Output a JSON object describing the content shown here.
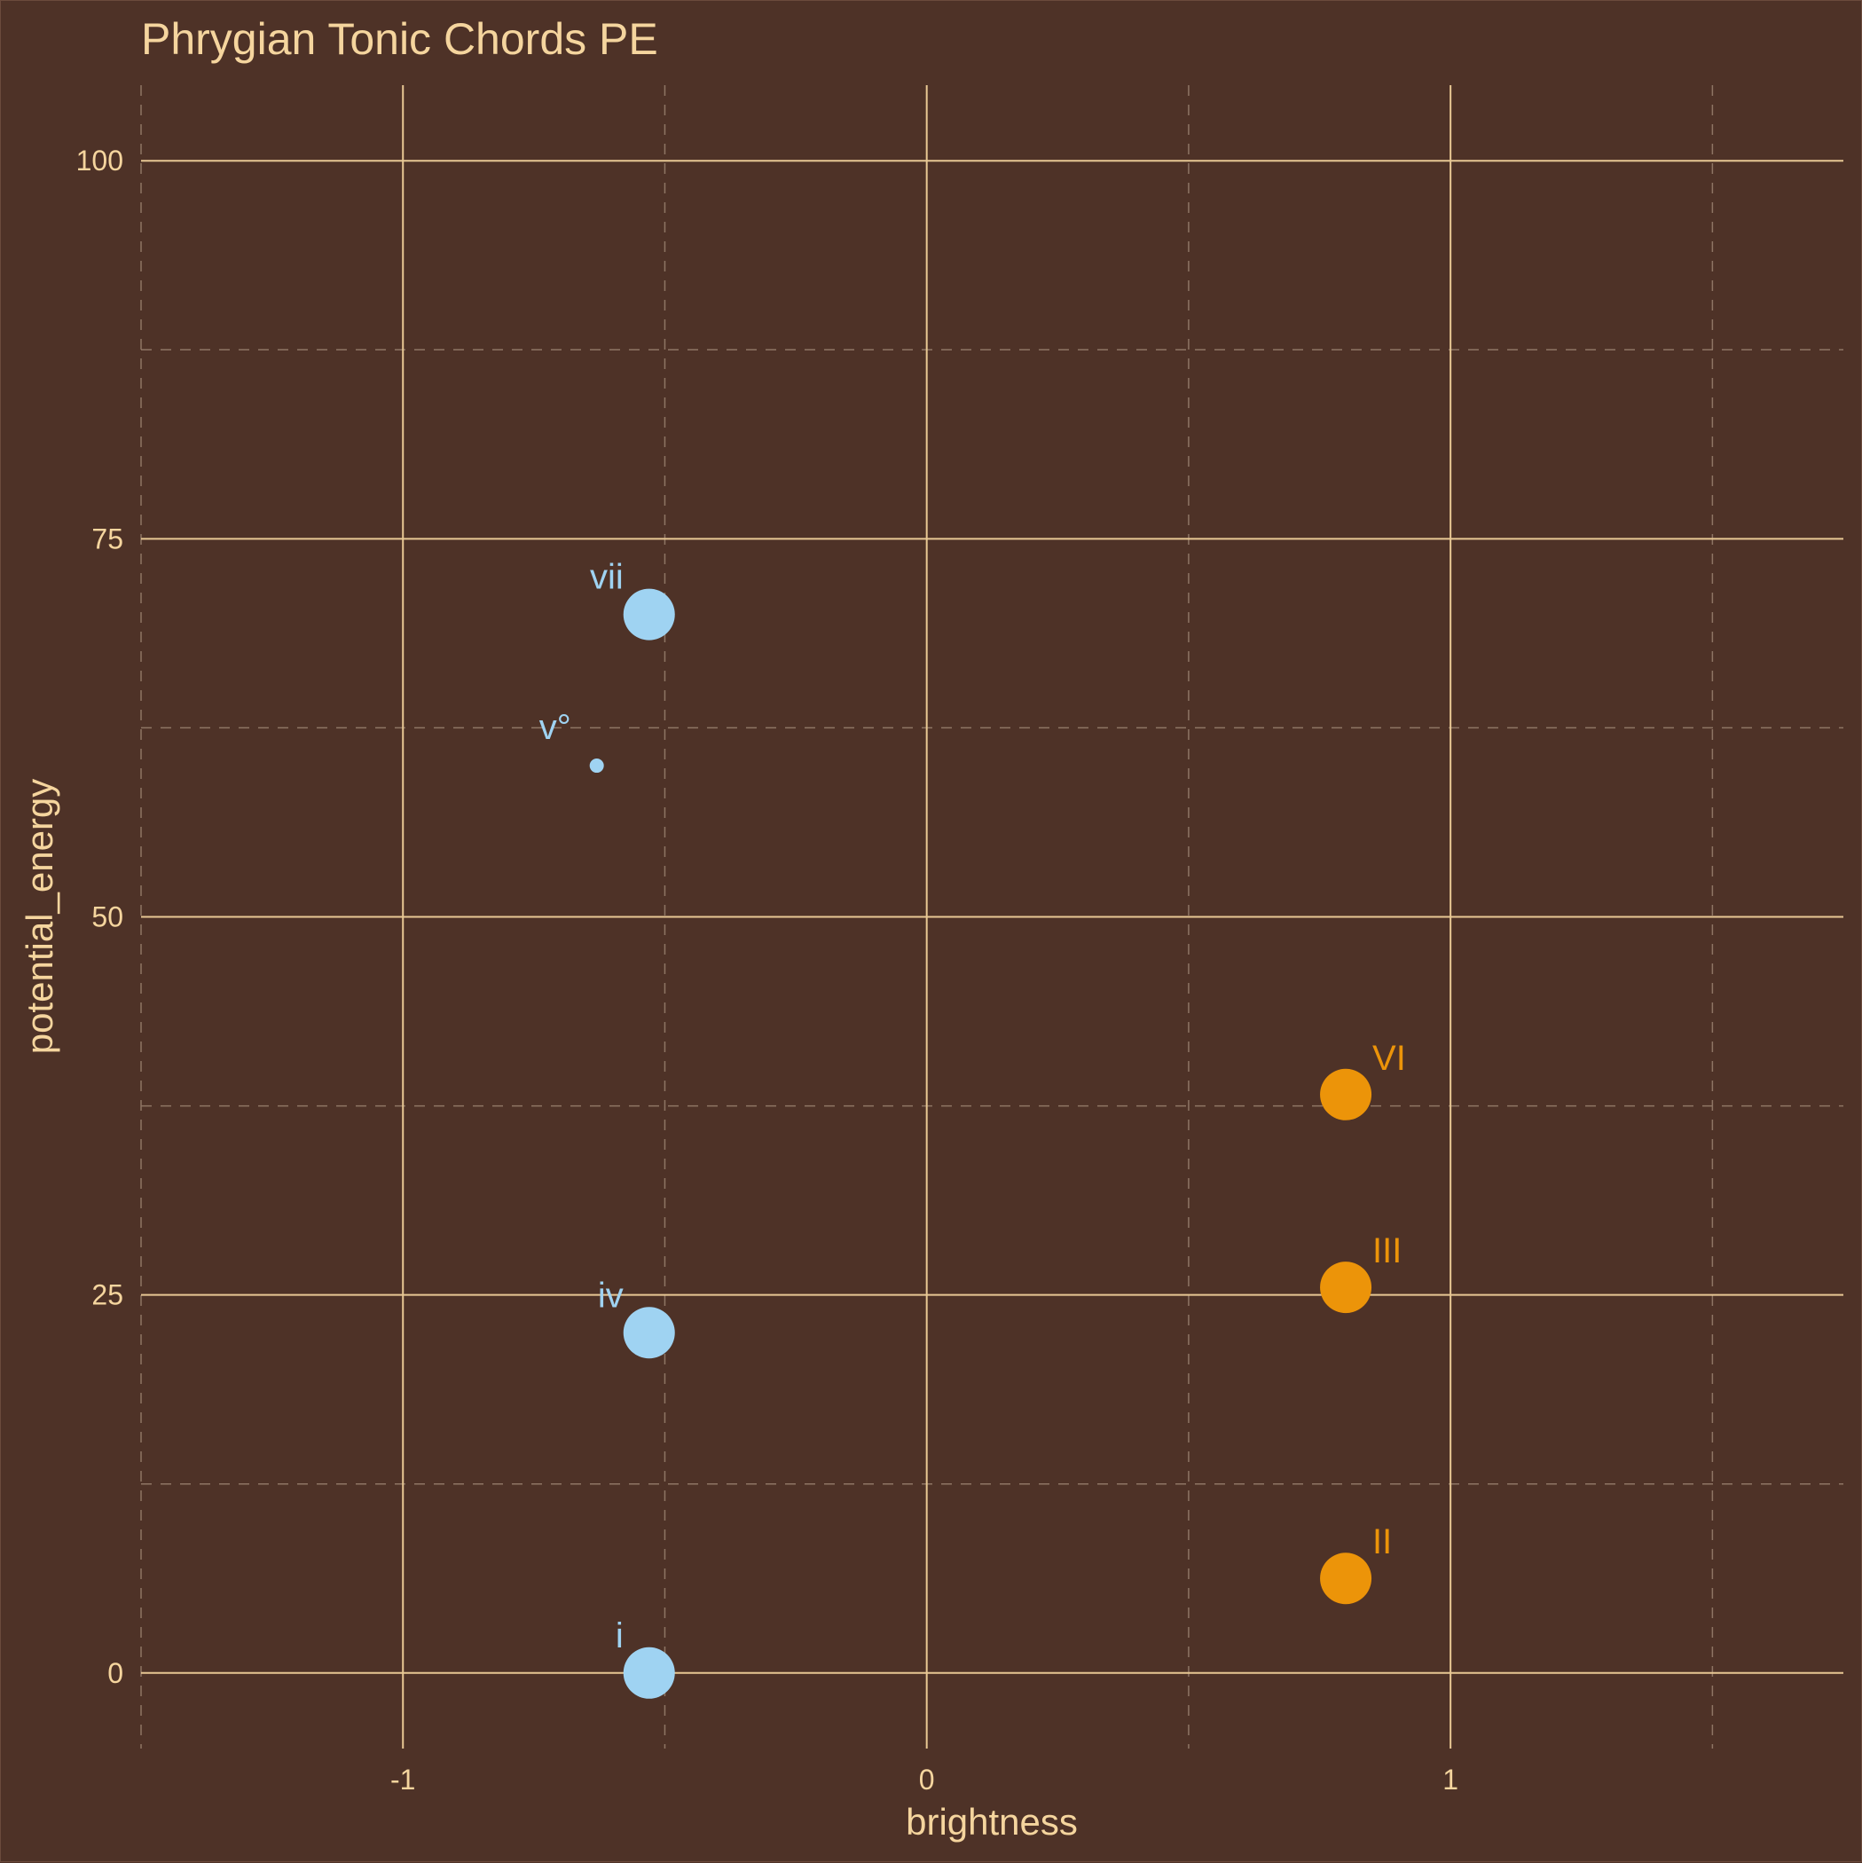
{
  "chart_data": {
    "type": "scatter",
    "title": "Phrygian Tonic Chords PE",
    "xlabel": "brightness",
    "ylabel": "potential_energy",
    "xlim": [
      -1.5,
      1.75
    ],
    "ylim": [
      -5,
      105
    ],
    "x_ticks": [
      -1,
      0,
      1
    ],
    "x_tick_labels": [
      "-1",
      "0",
      "1"
    ],
    "y_ticks": [
      0,
      25,
      50,
      75,
      100
    ],
    "y_tick_labels": [
      "0",
      "25",
      "50",
      "75",
      "100"
    ],
    "x_minor_ticks": [
      -1.5,
      -0.5,
      0.5,
      1.5
    ],
    "y_minor_ticks": [
      12.5,
      37.5,
      62.5,
      87.5
    ],
    "grid": true,
    "colors": {
      "background": "#4e3227",
      "grid_major": "#e8c894",
      "grid_minor": "#8e7564",
      "text": "#f5d59e",
      "minor_chord": "#9fd3f2",
      "major_chord": "#ec9409"
    },
    "points": [
      {
        "label": "i",
        "x": -0.53,
        "y": 0,
        "group": "minor",
        "size": "large"
      },
      {
        "label": "II",
        "x": 0.8,
        "y": 6.25,
        "group": "major",
        "size": "large"
      },
      {
        "label": "III",
        "x": 0.8,
        "y": 25.5,
        "group": "major",
        "size": "large"
      },
      {
        "label": "iv",
        "x": -0.53,
        "y": 22.5,
        "group": "minor",
        "size": "large"
      },
      {
        "label": "v°",
        "x": -0.63,
        "y": 60,
        "group": "minor",
        "size": "small"
      },
      {
        "label": "VI",
        "x": 0.8,
        "y": 38.25,
        "group": "major",
        "size": "large"
      },
      {
        "label": "vii",
        "x": -0.53,
        "y": 70,
        "group": "minor",
        "size": "large"
      }
    ]
  }
}
